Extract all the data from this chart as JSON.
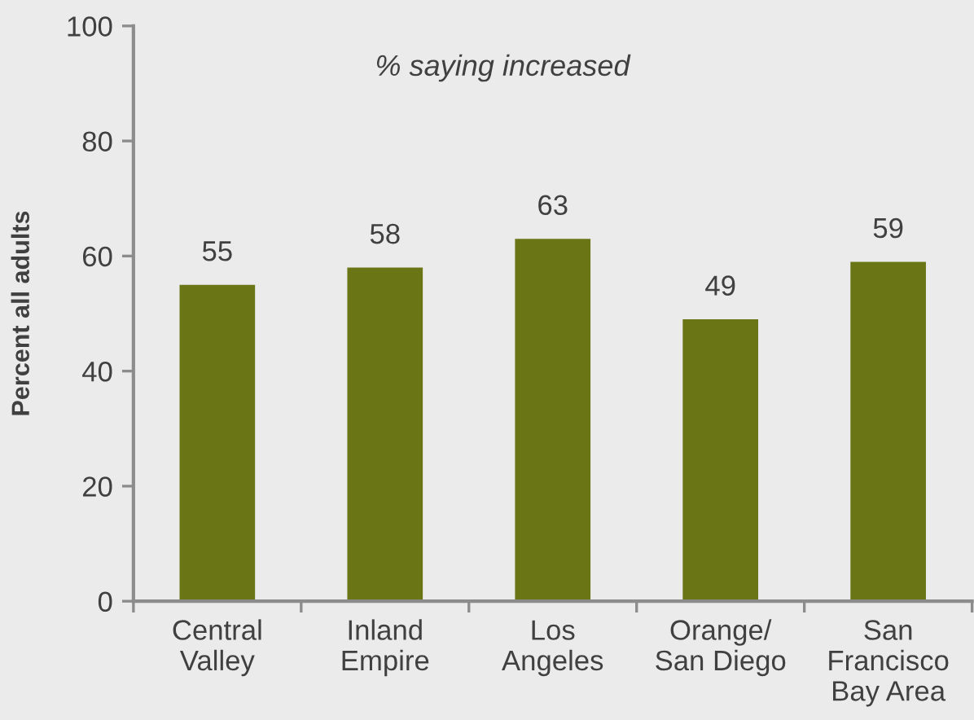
{
  "chart_data": {
    "type": "bar",
    "title": "% saying increased",
    "ylabel": "Percent all adults",
    "categories": [
      "Central\nValley",
      "Inland\nEmpire",
      "Los\nAngeles",
      "Orange/\nSan Diego",
      "San\nFrancisco\nBay Area"
    ],
    "values": [
      55,
      58,
      63,
      49,
      59
    ],
    "color": "#6a7616",
    "ylim": [
      0,
      100
    ],
    "yticks": [
      0,
      20,
      40,
      60,
      80,
      100
    ],
    "grid": false,
    "legend": false,
    "data_labels": true
  }
}
